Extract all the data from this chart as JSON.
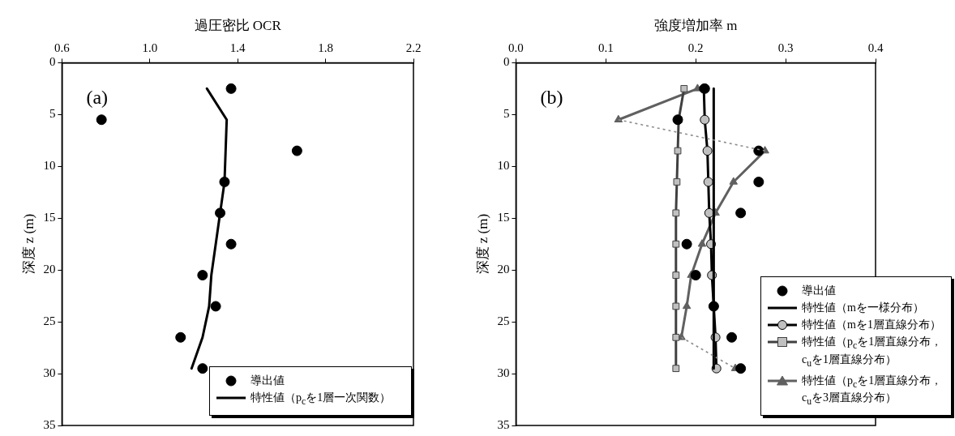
{
  "chart_data": [
    {
      "type": "scatter",
      "xlabel": "過圧密比 OCR",
      "ylabel": "深度 z (m)",
      "xlim": [
        0.6,
        2.2
      ],
      "xticks": [
        0.6,
        {
          "value": 1,
          "label": "1.0"
        },
        1.4,
        1.8,
        2.2
      ],
      "ylim": [
        35,
        0
      ],
      "yticks": [
        0,
        5,
        10,
        15,
        20,
        25,
        30,
        35
      ],
      "legend": "bottom right",
      "annotations": [
        "(a)"
      ],
      "series": [
        {
          "name": "導出値",
          "type": "scatter",
          "color": "#000000",
          "marker": "circle",
          "x": [
            1.37,
            0.78,
            1.67,
            1.34,
            1.32,
            1.37,
            1.24,
            1.3,
            1.14,
            1.24
          ],
          "values": [
            2.5,
            5.5,
            8.5,
            11.5,
            14.5,
            17.5,
            20.5,
            23.5,
            26.5,
            29.5
          ]
        },
        {
          "name": "特性値（p$_{c}$を1層一次関数）",
          "type": "line",
          "color": "#000000",
          "marker": "none",
          "line_style": "solid",
          "x": [
            1.26,
            1.35,
            1.34,
            1.32,
            1.3,
            1.28,
            1.27,
            1.24,
            1.19
          ],
          "values": [
            2.5,
            5.5,
            11.5,
            14.5,
            17.5,
            20.5,
            23.5,
            26.5,
            29.5
          ]
        }
      ]
    },
    {
      "type": "scatter",
      "xlabel": "強度増加率 m",
      "ylabel": "深度 z (m)",
      "xlim": [
        0,
        0.4
      ],
      "xticks": [
        {
          "value": 0,
          "label": "0.0"
        },
        0.1,
        0.2,
        0.3,
        0.4
      ],
      "ylim": [
        35,
        0
      ],
      "yticks": [
        0,
        5,
        10,
        15,
        20,
        25,
        30,
        35
      ],
      "legend": "bottom right",
      "annotations": [
        "(b)"
      ],
      "series": [
        {
          "name": "導出値",
          "type": "scatter",
          "color": "#000000",
          "marker": "circle",
          "x": [
            0.21,
            0.18,
            0.27,
            0.27,
            0.25,
            0.19,
            0.2,
            0.22,
            0.24,
            0.25
          ],
          "values": [
            2.5,
            5.5,
            8.5,
            11.5,
            14.5,
            17.5,
            20.5,
            23.5,
            26.5,
            29.5
          ]
        },
        {
          "name": "特性値（mを一様分布）",
          "type": "line",
          "color": "#000000",
          "marker": "none",
          "line_style": "solid",
          "x": [
            0.22,
            0.22
          ],
          "values": [
            2.5,
            29.5
          ]
        },
        {
          "name": "特性値（mを1層直線分布）",
          "type": "line",
          "color": "#000000",
          "marker": "circle",
          "line_style": "solid",
          "x": [
            0.209,
            0.21,
            0.213,
            0.214,
            0.215,
            0.217,
            0.218,
            0.22,
            0.222,
            0.223
          ],
          "values": [
            2.5,
            5.5,
            8.5,
            11.5,
            14.5,
            17.5,
            20.5,
            23.5,
            26.5,
            29.5
          ]
        },
        {
          "name": "特性値（p$_{c}$を1層直線分布，c$_{u}$を1層直線分布）",
          "type": "line",
          "color": "#404040",
          "marker": "square",
          "line_style": "solid",
          "x": [
            0.187,
            0.181,
            0.18,
            0.179,
            0.178,
            0.178,
            0.178,
            0.178,
            0.178,
            0.178
          ],
          "values": [
            2.5,
            5.5,
            8.5,
            11.5,
            14.5,
            17.5,
            20.5,
            23.5,
            26.5,
            29.5
          ]
        },
        {
          "name": "特性値（p$_{c}$を1層直線分布，c$_{u}$を3層直線分布）",
          "type": "line",
          "color": "#606060",
          "marker": "triangle",
          "line_style": "solid",
          "x": [
            0.202,
            0.114,
            null,
            0.277,
            0.242,
            0.222,
            0.207,
            0.195,
            0.19,
            0.184,
            null,
            0.244
          ],
          "values": [
            2.5,
            5.5,
            null,
            8.5,
            11.5,
            14.5,
            17.5,
            20.5,
            23.5,
            26.5,
            null,
            29.5
          ]
        },
        {
          "type": "line",
          "color": "#8c8c8c",
          "marker": "none",
          "line_style": "dotted",
          "x": [
            0.114,
            0.277,
            null,
            0.184,
            0.244
          ],
          "values": [
            5.5,
            8.5,
            null,
            26.5,
            29.5
          ]
        }
      ]
    }
  ]
}
